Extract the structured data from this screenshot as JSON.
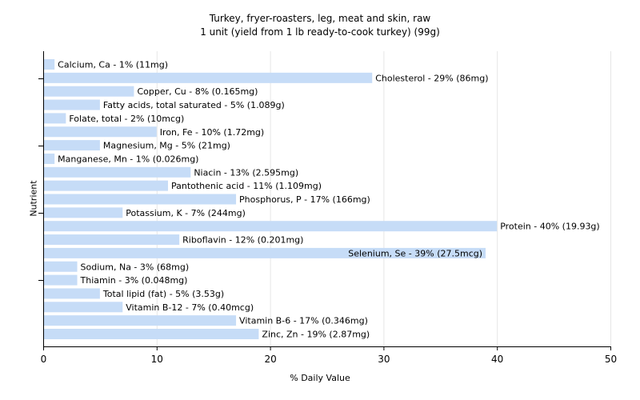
{
  "chart_data": {
    "type": "bar",
    "orientation": "horizontal",
    "title": "Turkey, fryer-roasters, leg, meat and skin, raw",
    "subtitle": "1 unit (yield from 1 lb ready-to-cook turkey) (99g)",
    "xlabel": "% Daily Value",
    "ylabel": "Nutrient",
    "xlim": [
      0,
      50
    ],
    "xticks": [
      "0",
      "10",
      "20",
      "30",
      "40",
      "50"
    ],
    "grid": true,
    "bar_color": "#c6dcf7",
    "categories": [
      "Calcium, Ca",
      "Cholesterol",
      "Copper, Cu",
      "Fatty acids, total saturated",
      "Folate, total",
      "Iron, Fe",
      "Magnesium, Mg",
      "Manganese, Mn",
      "Niacin",
      "Pantothenic acid",
      "Phosphorus, P",
      "Potassium, K",
      "Protein",
      "Riboflavin",
      "Selenium, Se",
      "Sodium, Na",
      "Thiamin",
      "Total lipid (fat)",
      "Vitamin B-12",
      "Vitamin B-6",
      "Zinc, Zn"
    ],
    "values": [
      1,
      29,
      8,
      5,
      2,
      10,
      5,
      1,
      13,
      11,
      17,
      7,
      40,
      12,
      39,
      3,
      3,
      5,
      7,
      17,
      19
    ],
    "labels": [
      "Calcium, Ca - 1% (11mg)",
      "Cholesterol - 29% (86mg)",
      "Copper, Cu - 8% (0.165mg)",
      "Fatty acids, total saturated - 5% (1.089g)",
      "Folate, total - 2% (10mcg)",
      "Iron, Fe - 10% (1.72mg)",
      "Magnesium, Mg - 5% (21mg)",
      "Manganese, Mn - 1% (0.026mg)",
      "Niacin - 13% (2.595mg)",
      "Pantothenic acid - 11% (1.109mg)",
      "Phosphorus, P - 17% (166mg)",
      "Potassium, K - 7% (244mg)",
      "Protein - 40% (19.93g)",
      "Riboflavin - 12% (0.201mg)",
      "Selenium, Se - 39% (27.5mcg)",
      "Sodium, Na - 3% (68mg)",
      "Thiamin - 3% (0.048mg)",
      "Total lipid (fat) - 5% (3.53g)",
      "Vitamin B-12 - 7% (0.40mcg)",
      "Vitamin B-6 - 17% (0.346mg)",
      "Zinc, Zn - 19% (2.87mg)"
    ]
  }
}
